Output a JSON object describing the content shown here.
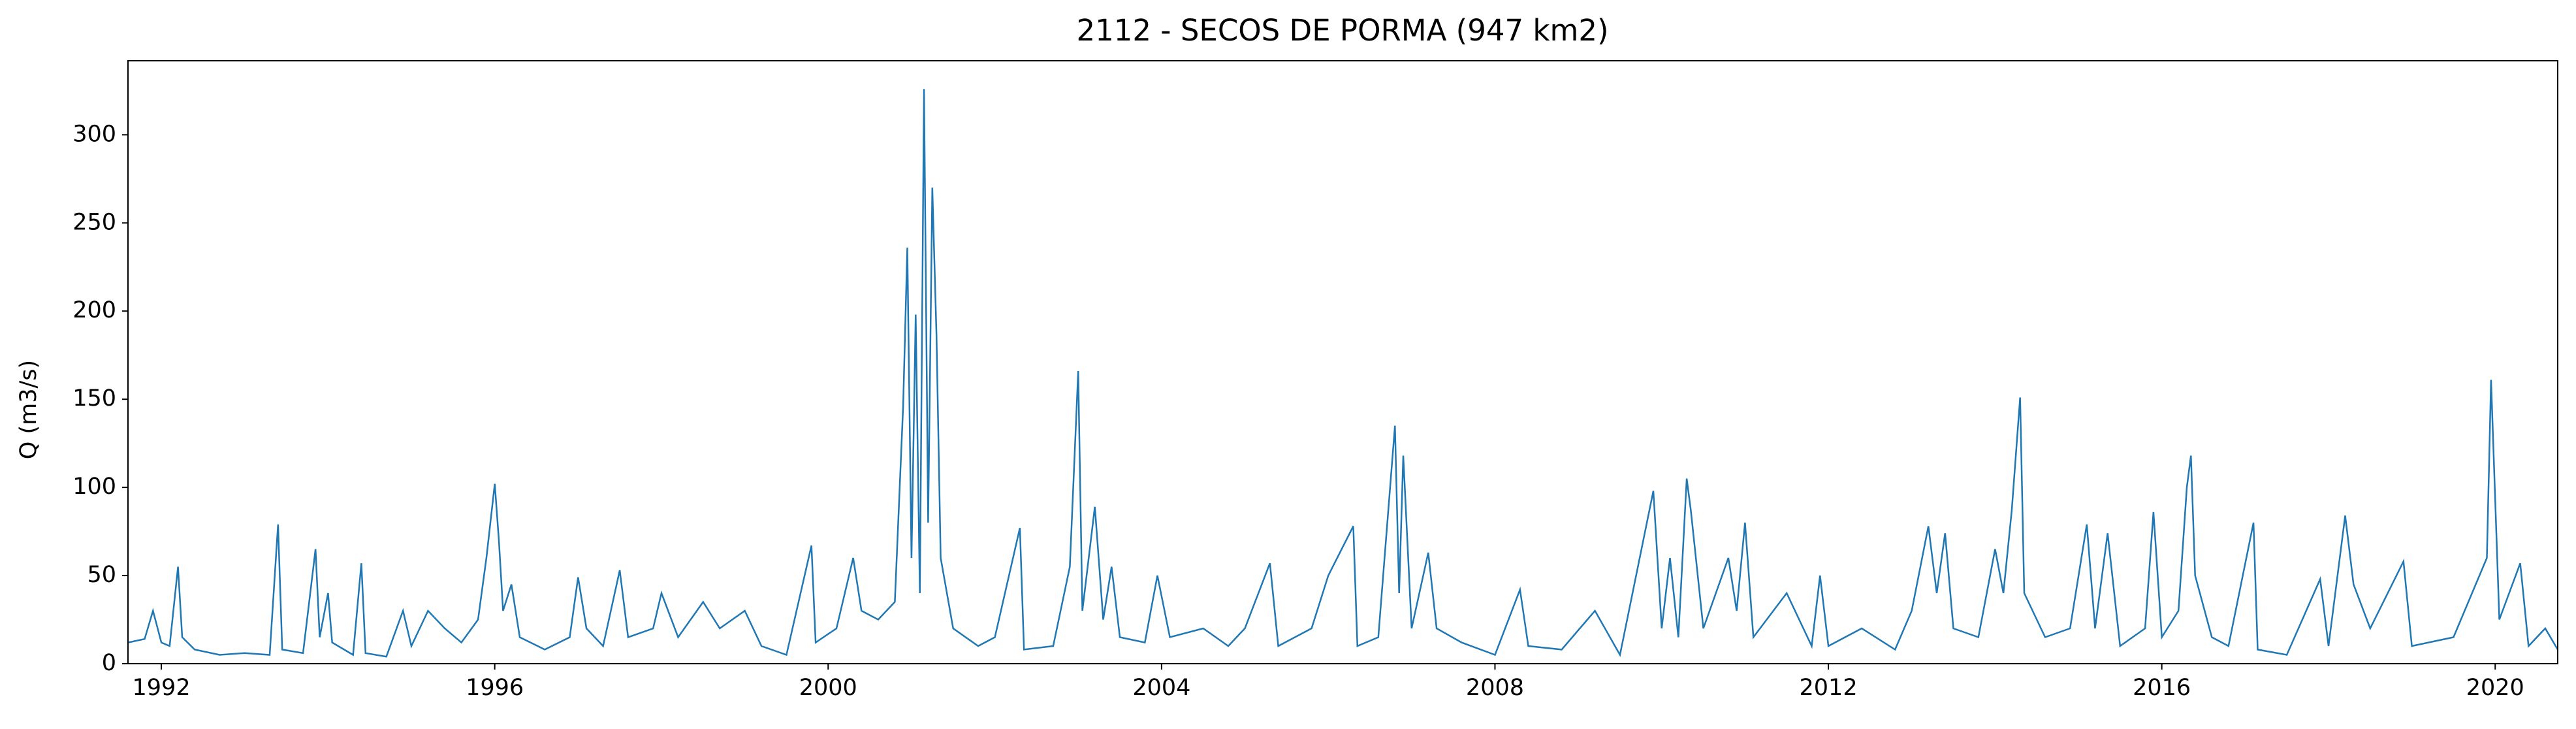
{
  "chart_data": {
    "type": "line",
    "title": "2112 - SECOS DE PORMA (947 km2)",
    "y_label": "Q (m3/s)",
    "color": "#1f77b4",
    "x": [
      1991.6,
      1991.8,
      1991.9,
      1992.0,
      1992.1,
      1992.2,
      1992.25,
      1992.4,
      1992.7,
      1993.0,
      1993.3,
      1993.4,
      1993.45,
      1993.7,
      1993.85,
      1993.9,
      1994.0,
      1994.05,
      1994.3,
      1994.4,
      1994.45,
      1994.7,
      1994.9,
      1995.0,
      1995.2,
      1995.4,
      1995.6,
      1995.8,
      1995.9,
      1996.0,
      1996.05,
      1996.1,
      1996.2,
      1996.3,
      1996.6,
      1996.9,
      1997.0,
      1997.1,
      1997.3,
      1997.5,
      1997.6,
      1997.9,
      1998.0,
      1998.2,
      1998.5,
      1998.7,
      1999.0,
      1999.2,
      1999.5,
      1999.8,
      1999.85,
      2000.1,
      2000.3,
      2000.4,
      2000.6,
      2000.8,
      2000.9,
      2000.95,
      2001.0,
      2001.05,
      2001.1,
      2001.15,
      2001.2,
      2001.25,
      2001.3,
      2001.35,
      2001.5,
      2001.8,
      2002.0,
      2002.3,
      2002.35,
      2002.7,
      2002.9,
      2003.0,
      2003.05,
      2003.2,
      2003.3,
      2003.4,
      2003.5,
      2003.8,
      2003.95,
      2004.1,
      2004.5,
      2004.8,
      2005.0,
      2005.3,
      2005.4,
      2005.8,
      2006.0,
      2006.3,
      2006.35,
      2006.6,
      2006.8,
      2006.85,
      2006.9,
      2007.0,
      2007.2,
      2007.3,
      2007.6,
      2008.0,
      2008.3,
      2008.4,
      2008.8,
      2009.2,
      2009.5,
      2009.9,
      2010.0,
      2010.1,
      2010.2,
      2010.3,
      2010.35,
      2010.5,
      2010.8,
      2010.9,
      2011.0,
      2011.1,
      2011.5,
      2011.8,
      2011.9,
      2012.0,
      2012.4,
      2012.8,
      2013.0,
      2013.2,
      2013.3,
      2013.4,
      2013.5,
      2013.8,
      2014.0,
      2014.1,
      2014.2,
      2014.3,
      2014.35,
      2014.6,
      2014.9,
      2015.1,
      2015.2,
      2015.35,
      2015.5,
      2015.8,
      2015.9,
      2016.0,
      2016.2,
      2016.3,
      2016.35,
      2016.4,
      2016.6,
      2016.8,
      2017.1,
      2017.15,
      2017.5,
      2017.9,
      2018.0,
      2018.2,
      2018.3,
      2018.5,
      2018.9,
      2019.0,
      2019.5,
      2019.9,
      2019.95,
      2020.05,
      2020.3,
      2020.4,
      2020.6,
      2020.75
    ],
    "values": [
      12,
      14,
      30,
      12,
      10,
      55,
      15,
      8,
      5,
      6,
      5,
      79,
      8,
      6,
      65,
      15,
      40,
      12,
      5,
      57,
      6,
      4,
      30,
      10,
      30,
      20,
      12,
      25,
      60,
      102,
      70,
      30,
      45,
      15,
      8,
      15,
      49,
      20,
      10,
      53,
      15,
      20,
      40,
      15,
      35,
      20,
      30,
      10,
      5,
      67,
      12,
      20,
      60,
      30,
      25,
      35,
      146,
      236,
      60,
      198,
      40,
      326,
      80,
      270,
      186,
      60,
      20,
      10,
      15,
      77,
      8,
      10,
      55,
      166,
      30,
      89,
      25,
      55,
      15,
      12,
      50,
      15,
      20,
      10,
      20,
      57,
      10,
      20,
      50,
      78,
      10,
      15,
      135,
      40,
      118,
      20,
      63,
      20,
      12,
      5,
      42,
      10,
      8,
      30,
      5,
      98,
      20,
      60,
      15,
      105,
      87,
      20,
      60,
      30,
      80,
      15,
      40,
      10,
      50,
      10,
      20,
      8,
      30,
      78,
      40,
      74,
      20,
      15,
      65,
      40,
      87,
      151,
      40,
      15,
      20,
      79,
      20,
      74,
      10,
      20,
      86,
      15,
      30,
      100,
      118,
      50,
      15,
      10,
      80,
      8,
      5,
      48,
      10,
      84,
      45,
      20,
      58,
      10,
      15,
      60,
      161,
      25,
      57,
      10,
      20,
      8
    ],
    "xlim": [
      1991.6,
      2020.75
    ],
    "xticks": [
      1992,
      1996,
      2000,
      2004,
      2008,
      2012,
      2016,
      2020
    ],
    "ylim": [
      0,
      342
    ],
    "yticks": [
      0,
      50,
      100,
      150,
      200,
      250,
      300
    ]
  }
}
